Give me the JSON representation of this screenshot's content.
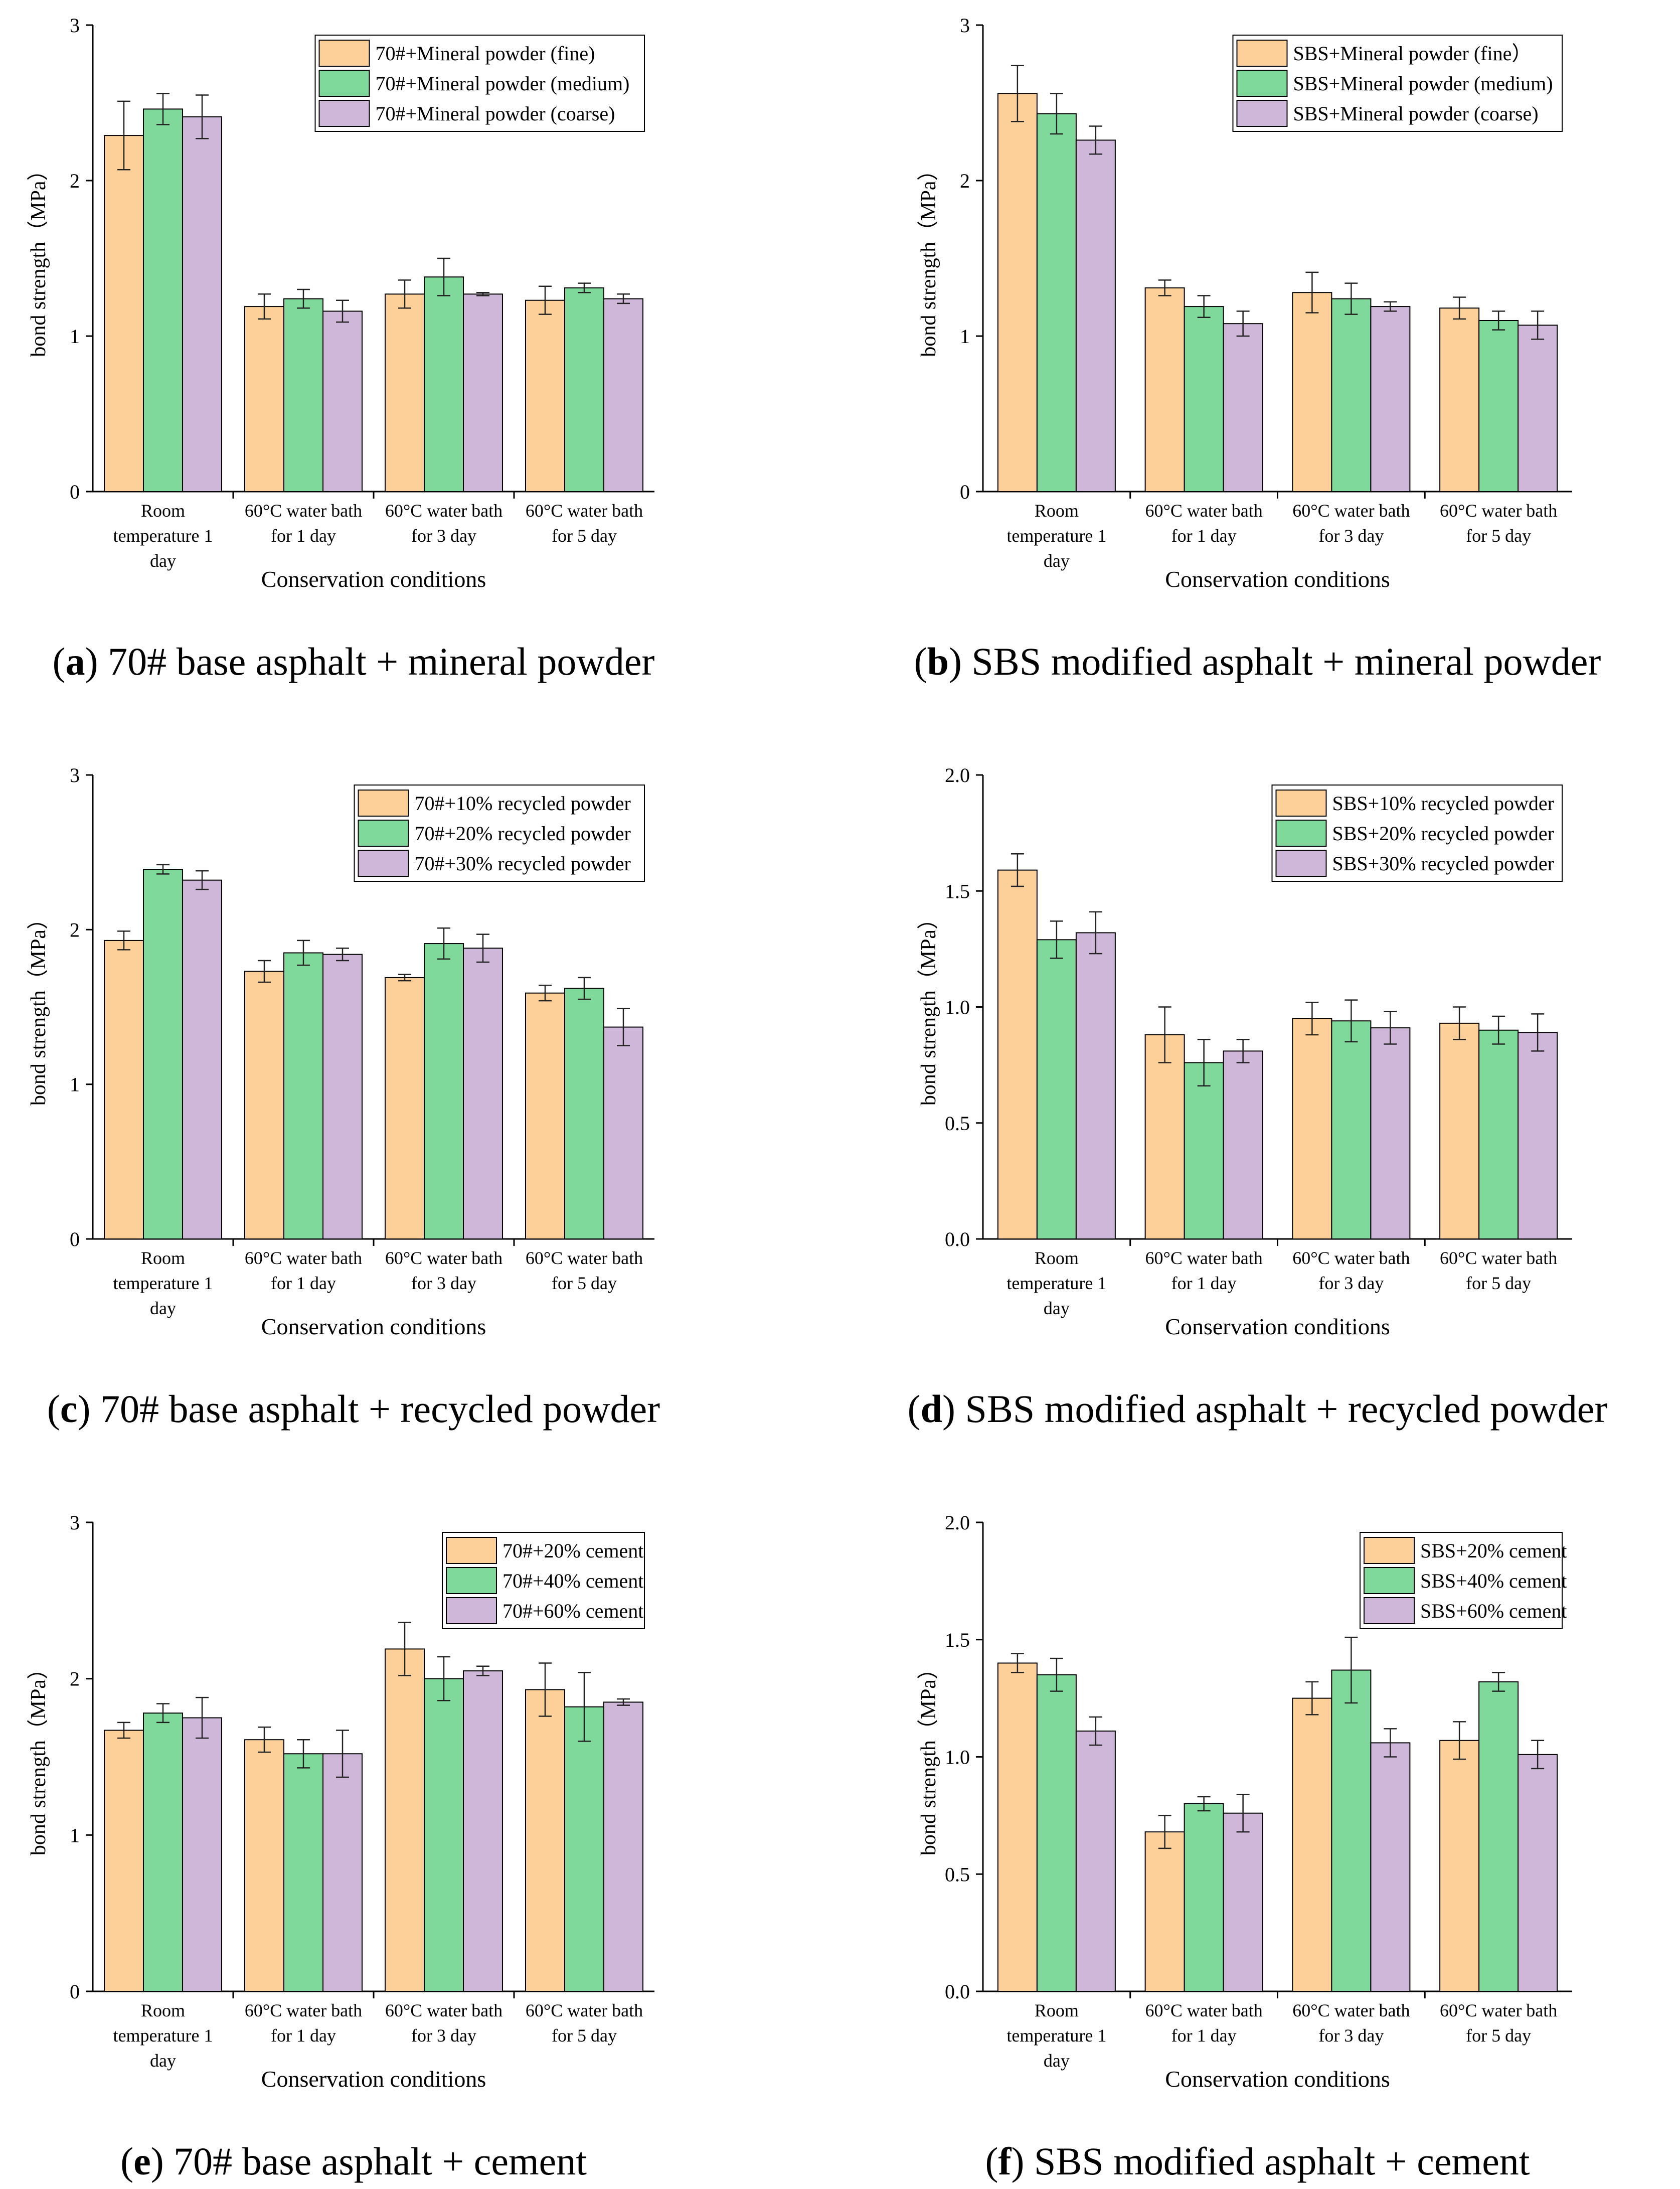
{
  "colors": {
    "fine": "#fdd09a",
    "medium": "#7fd99a",
    "coarse": "#cfb7da",
    "axis": "#000000"
  },
  "chart_data": [
    {
      "type": "bar",
      "caption": {
        "letter": "a",
        "prefix": "(",
        "suffix": ") 70# base asphalt + mineral powder"
      },
      "ylabel": "bond strength（MPa）",
      "xlabel": "Conservation conditions",
      "ylim": [
        0,
        3
      ],
      "yticks": [
        "0",
        "1",
        "2",
        "3"
      ],
      "ytick_values": [
        0,
        1,
        2,
        3
      ],
      "categories": [
        "Room temperature 1 day",
        "60°C water bath for 1 day",
        "60°C water bath for 3 day",
        "60°C water bath for 5 day"
      ],
      "category_lines": [
        [
          "Room",
          "temperature 1",
          "day"
        ],
        [
          "60°C water bath",
          "for 1 day"
        ],
        [
          "60°C water bath",
          "for 3 day"
        ],
        [
          "60°C water bath",
          "for 5 day"
        ]
      ],
      "legend_position": "top-right",
      "series": [
        {
          "name": "70#+Mineral powder (fine)",
          "values": [
            2.29,
            1.19,
            1.27,
            1.23
          ],
          "errors": [
            0.22,
            0.08,
            0.09,
            0.09
          ]
        },
        {
          "name": "70#+Mineral powder (medium)",
          "values": [
            2.46,
            1.24,
            1.38,
            1.31
          ],
          "errors": [
            0.1,
            0.06,
            0.12,
            0.03
          ]
        },
        {
          "name": "70#+Mineral powder (coarse)",
          "values": [
            2.41,
            1.16,
            1.27,
            1.24
          ],
          "errors": [
            0.14,
            0.07,
            0.01,
            0.03
          ]
        }
      ]
    },
    {
      "type": "bar",
      "caption": {
        "letter": "b",
        "prefix": "(",
        "suffix": ") SBS modified asphalt + mineral powder"
      },
      "ylabel": "bond strength（MPa）",
      "xlabel": "Conservation conditions",
      "ylim": [
        0,
        3
      ],
      "yticks": [
        "0",
        "1",
        "2",
        "3"
      ],
      "ytick_values": [
        0,
        1,
        2,
        3
      ],
      "categories": [
        "Room temperature 1 day",
        "60°C water bath for 1 day",
        "60°C water bath for 3 day",
        "60°C water bath for 5 day"
      ],
      "category_lines": [
        [
          "Room",
          "temperature 1",
          "day"
        ],
        [
          "60°C water bath",
          "for 1 day"
        ],
        [
          "60°C water bath",
          "for 3 day"
        ],
        [
          "60°C water bath",
          "for 5 day"
        ]
      ],
      "legend_position": "top-right",
      "series": [
        {
          "name": "SBS+Mineral powder (fine）",
          "values": [
            2.56,
            1.31,
            1.28,
            1.18
          ],
          "errors": [
            0.18,
            0.05,
            0.13,
            0.07
          ]
        },
        {
          "name": "SBS+Mineral powder (medium)",
          "values": [
            2.43,
            1.19,
            1.24,
            1.1
          ],
          "errors": [
            0.13,
            0.07,
            0.1,
            0.06
          ]
        },
        {
          "name": "SBS+Mineral powder (coarse)",
          "values": [
            2.26,
            1.08,
            1.19,
            1.07
          ],
          "errors": [
            0.09,
            0.08,
            0.03,
            0.09
          ]
        }
      ]
    },
    {
      "type": "bar",
      "caption": {
        "letter": "c",
        "prefix": "(",
        "suffix": ") 70# base asphalt + recycled powder"
      },
      "ylabel": "bond strength（MPa）",
      "xlabel": "Conservation conditions",
      "ylim": [
        0,
        3
      ],
      "yticks": [
        "0",
        "1",
        "2",
        "3"
      ],
      "ytick_values": [
        0,
        1,
        2,
        3
      ],
      "categories": [
        "Room temperature 1 day",
        "60°C water bath for 1 day",
        "60°C water bath for 3 day",
        "60°C water bath for 5 day"
      ],
      "category_lines": [
        [
          "Room",
          "temperature 1",
          "day"
        ],
        [
          "60°C water bath",
          "for 1 day"
        ],
        [
          "60°C water bath",
          "for 3 day"
        ],
        [
          "60°C water bath",
          "for 5 day"
        ]
      ],
      "legend_position": "top-right",
      "series": [
        {
          "name": "70#+10% recycled powder",
          "values": [
            1.93,
            1.73,
            1.69,
            1.59
          ],
          "errors": [
            0.06,
            0.07,
            0.02,
            0.05
          ]
        },
        {
          "name": "70#+20% recycled powder",
          "values": [
            2.39,
            1.85,
            1.91,
            1.62
          ],
          "errors": [
            0.03,
            0.08,
            0.1,
            0.07
          ]
        },
        {
          "name": "70#+30% recycled powder",
          "values": [
            2.32,
            1.84,
            1.88,
            1.37
          ],
          "errors": [
            0.06,
            0.04,
            0.09,
            0.12
          ]
        }
      ]
    },
    {
      "type": "bar",
      "caption": {
        "letter": "d",
        "prefix": "(",
        "suffix": ") SBS modified asphalt + recycled powder"
      },
      "ylabel": "bond strength（MPa）",
      "xlabel": "Conservation conditions",
      "ylim": [
        0,
        2
      ],
      "yticks": [
        "0.0",
        "0.5",
        "1.0",
        "1.5",
        "2.0"
      ],
      "ytick_values": [
        0,
        0.5,
        1,
        1.5,
        2
      ],
      "categories": [
        "Room temperature 1 day",
        "60°C water bath for 1 day",
        "60°C water bath for 3 day",
        "60°C water bath for 5 day"
      ],
      "category_lines": [
        [
          "Room",
          "temperature 1",
          "day"
        ],
        [
          "60°C water bath",
          "for 1 day"
        ],
        [
          "60°C water bath",
          "for 3 day"
        ],
        [
          "60°C water bath",
          "for 5 day"
        ]
      ],
      "legend_position": "top-right",
      "series": [
        {
          "name": "SBS+10% recycled powder",
          "values": [
            1.59,
            0.88,
            0.95,
            0.93
          ],
          "errors": [
            0.07,
            0.12,
            0.07,
            0.07
          ]
        },
        {
          "name": "SBS+20% recycled powder",
          "values": [
            1.29,
            0.76,
            0.94,
            0.9
          ],
          "errors": [
            0.08,
            0.1,
            0.09,
            0.06
          ]
        },
        {
          "name": "SBS+30% recycled powder",
          "values": [
            1.32,
            0.81,
            0.91,
            0.89
          ],
          "errors": [
            0.09,
            0.05,
            0.07,
            0.08
          ]
        }
      ]
    },
    {
      "type": "bar",
      "caption": {
        "letter": "e",
        "prefix": "(",
        "suffix": ") 70# base asphalt + cement"
      },
      "ylabel": "bond strength（MPa）",
      "xlabel": "Conservation conditions",
      "ylim": [
        0,
        3
      ],
      "yticks": [
        "0",
        "1",
        "2",
        "3"
      ],
      "ytick_values": [
        0,
        1,
        2,
        3
      ],
      "categories": [
        "Room temperature 1 day",
        "60°C water bath for 1 day",
        "60°C water bath for 3 day",
        "60°C water bath for 5 day"
      ],
      "category_lines": [
        [
          "Room",
          "temperature 1",
          "day"
        ],
        [
          "60°C water bath",
          "for 1 day"
        ],
        [
          "60°C water bath",
          "for 3 day"
        ],
        [
          "60°C water bath",
          "for 5 day"
        ]
      ],
      "legend_position": "top-right",
      "series": [
        {
          "name": "70#+20% cement",
          "values": [
            1.67,
            1.61,
            2.19,
            1.93
          ],
          "errors": [
            0.05,
            0.08,
            0.17,
            0.17
          ]
        },
        {
          "name": "70#+40% cement",
          "values": [
            1.78,
            1.52,
            2.0,
            1.82
          ],
          "errors": [
            0.06,
            0.09,
            0.14,
            0.22
          ]
        },
        {
          "name": "70#+60% cement",
          "values": [
            1.75,
            1.52,
            2.05,
            1.85
          ],
          "errors": [
            0.13,
            0.15,
            0.03,
            0.02
          ]
        }
      ]
    },
    {
      "type": "bar",
      "caption": {
        "letter": "f",
        "prefix": "(",
        "suffix": ") SBS modified asphalt + cement"
      },
      "ylabel": "bond strength（MPa）",
      "xlabel": "Conservation conditions",
      "ylim": [
        0,
        2
      ],
      "yticks": [
        "0.0",
        "0.5",
        "1.0",
        "1.5",
        "2.0"
      ],
      "ytick_values": [
        0,
        0.5,
        1,
        1.5,
        2
      ],
      "categories": [
        "Room temperature 1 day",
        "60°C water bath for 1 day",
        "60°C water bath for 3 day",
        "60°C water bath for 5 day"
      ],
      "category_lines": [
        [
          "Room",
          "temperature 1",
          "day"
        ],
        [
          "60°C water bath",
          "for 1 day"
        ],
        [
          "60°C water bath",
          "for 3 day"
        ],
        [
          "60°C water bath",
          "for 5 day"
        ]
      ],
      "legend_position": "top-right",
      "series": [
        {
          "name": "SBS+20% cement",
          "values": [
            1.4,
            0.68,
            1.25,
            1.07
          ],
          "errors": [
            0.04,
            0.07,
            0.07,
            0.08
          ]
        },
        {
          "name": "SBS+40% cement",
          "values": [
            1.35,
            0.8,
            1.37,
            1.32
          ],
          "errors": [
            0.07,
            0.03,
            0.14,
            0.04
          ]
        },
        {
          "name": "SBS+60% cement",
          "values": [
            1.11,
            0.76,
            1.06,
            1.01
          ],
          "errors": [
            0.06,
            0.08,
            0.06,
            0.06
          ]
        }
      ]
    }
  ]
}
